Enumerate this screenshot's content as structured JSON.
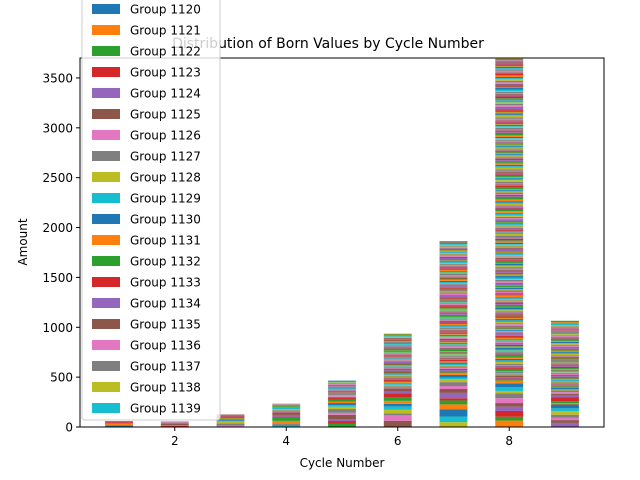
{
  "chart_data": {
    "type": "bar",
    "stacked": true,
    "title": "Distribution of Born Values by Cycle Number",
    "xlabel": "Cycle Number",
    "ylabel": "Amount",
    "x": [
      1,
      2,
      3,
      4,
      5,
      6,
      7,
      8,
      9
    ],
    "totals": [
      60,
      55,
      125,
      235,
      465,
      935,
      1865,
      3700,
      1065
    ],
    "xlim": [
      0.3,
      9.7
    ],
    "ylim": [
      0,
      3700
    ],
    "xticks": [
      2,
      4,
      6,
      8
    ],
    "yticks": [
      0,
      500,
      1000,
      1500,
      2000,
      2500,
      3000,
      3500
    ],
    "grid": false,
    "legend_position": "top-left, clipped above the axes",
    "visible_legend_entries": [
      "Group 1120",
      "Group 1121",
      "Group 1122",
      "Group 1123",
      "Group 1124",
      "Group 1125",
      "Group 1126",
      "Group 1127",
      "Group 1128",
      "Group 1129",
      "Group 1130",
      "Group 1131",
      "Group 1132",
      "Group 1133",
      "Group 1134",
      "Group 1135",
      "Group 1136",
      "Group 1137",
      "Group 1138",
      "Group 1139"
    ],
    "palette": [
      "#1f77b4",
      "#ff7f0e",
      "#2ca02c",
      "#d62728",
      "#9467bd",
      "#8c564b",
      "#e377c2",
      "#7f7f7f",
      "#bcbd22",
      "#17becf"
    ]
  }
}
